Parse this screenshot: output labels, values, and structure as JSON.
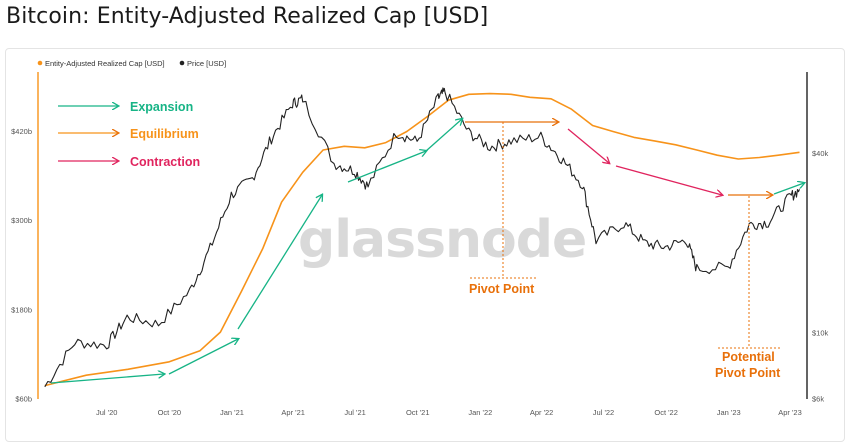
{
  "title": "Bitcoin: Entity-Adjusted Realized Cap [USD]",
  "watermark": "glassnode",
  "colors": {
    "realized_cap": "#f7931a",
    "price": "#222222",
    "expansion": "#17b486",
    "equilibrium": "#f7931a",
    "contraction": "#e0245e",
    "pivot": "#e8700a"
  },
  "legend": {
    "items": [
      {
        "label": "Entity-Adjusted Realized Cap [USD]",
        "color": "#f7931a"
      },
      {
        "label": "Price [USD]",
        "color": "#222222"
      }
    ]
  },
  "annotations": {
    "expansion": "Expansion",
    "equilibrium": "Equilibrium",
    "contraction": "Contraction",
    "pivot_point": "Pivot Point",
    "potential_line1": "Potential",
    "potential_line2": "Pivot Point"
  },
  "chart_data": {
    "type": "line",
    "title": "Bitcoin: Entity-Adjusted Realized Cap [USD]",
    "x_tick_labels": [
      "Jul '20",
      "Oct '20",
      "Jan '21",
      "Apr '21",
      "Jul '21",
      "Oct '21",
      "Jan '22",
      "Apr '22",
      "Jul '22",
      "Oct '22",
      "Jan '23",
      "Apr '23"
    ],
    "y_left_tick_labels": [
      "$60b",
      "$180b",
      "$300b",
      "$420b"
    ],
    "y_left_range": [
      60,
      500
    ],
    "y_right_tick_labels": [
      "$6k",
      "$10k",
      "$40k"
    ],
    "y_right_scale": "log",
    "y_right_range": [
      6000,
      75000
    ],
    "series": [
      {
        "name": "Entity-Adjusted Realized Cap [USD]",
        "axis": "left",
        "x": [
          "2020-04-01",
          "2020-06-01",
          "2020-08-01",
          "2020-10-01",
          "2020-11-15",
          "2020-12-15",
          "2021-01-15",
          "2021-02-15",
          "2021-03-15",
          "2021-04-15",
          "2021-05-15",
          "2021-06-15",
          "2021-07-15",
          "2021-08-15",
          "2021-09-15",
          "2021-10-15",
          "2021-11-15",
          "2021-12-15",
          "2022-01-15",
          "2022-02-15",
          "2022-03-15",
          "2022-04-15",
          "2022-05-15",
          "2022-06-15",
          "2022-07-15",
          "2022-08-15",
          "2022-09-15",
          "2022-10-15",
          "2022-11-15",
          "2022-12-15",
          "2023-01-15",
          "2023-02-15",
          "2023-03-15",
          "2023-04-15"
        ],
        "y": [
          78,
          92,
          100,
          110,
          125,
          150,
          205,
          262,
          325,
          365,
          395,
          400,
          398,
          405,
          420,
          440,
          462,
          470,
          471,
          470,
          466,
          464,
          450,
          428,
          420,
          412,
          407,
          402,
          395,
          388,
          383,
          385,
          388,
          392
        ]
      },
      {
        "name": "Price [USD]",
        "axis": "right",
        "x": [
          "2020-04-01",
          "2020-05-15",
          "2020-07-01",
          "2020-07-31",
          "2020-09-15",
          "2020-10-31",
          "2020-11-30",
          "2020-12-31",
          "2021-01-31",
          "2021-02-28",
          "2021-03-31",
          "2021-04-15",
          "2021-05-31",
          "2021-06-30",
          "2021-07-20",
          "2021-08-31",
          "2021-09-30",
          "2021-10-31",
          "2021-11-10",
          "2021-12-15",
          "2022-01-15",
          "2022-02-15",
          "2022-03-31",
          "2022-04-30",
          "2022-05-31",
          "2022-06-20",
          "2022-07-31",
          "2022-08-31",
          "2022-09-30",
          "2022-10-31",
          "2022-11-15",
          "2022-12-31",
          "2023-01-31",
          "2023-02-28",
          "2023-03-31",
          "2023-04-15"
        ],
        "y": [
          6600,
          9300,
          9100,
          11300,
          10700,
          13800,
          19200,
          29000,
          33000,
          45000,
          58800,
          61000,
          37000,
          35000,
          31000,
          47000,
          43800,
          61300,
          64500,
          47000,
          42000,
          44000,
          45500,
          38500,
          31500,
          20400,
          23300,
          20000,
          19400,
          20500,
          16400,
          16600,
          23100,
          23500,
          28400,
          30300
        ]
      }
    ],
    "grid": false,
    "legend_position": "top-left"
  }
}
